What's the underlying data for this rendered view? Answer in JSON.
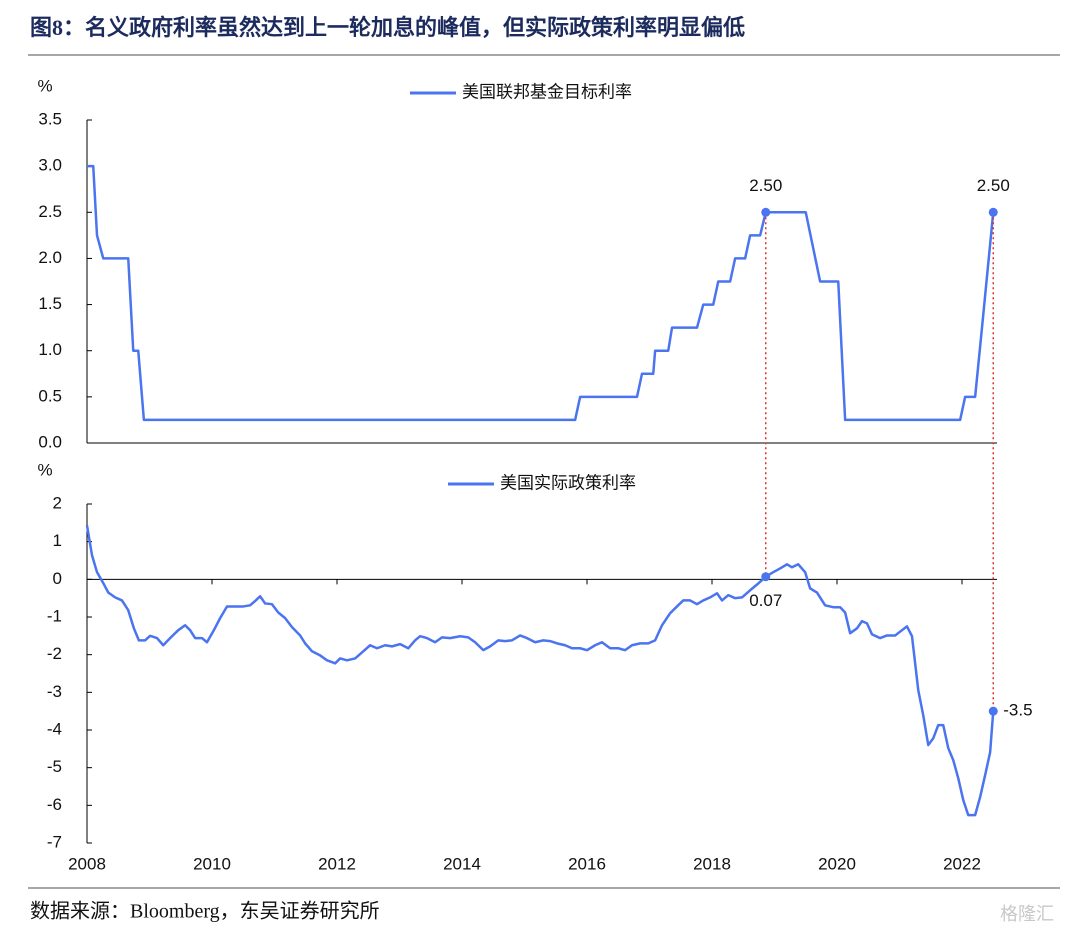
{
  "title": "图8：名义政府利率虽然达到上一轮加息的峰值，但实际政策利率明显偏低",
  "source": "数据来源：Bloomberg，东吴证券研究所",
  "watermark": "格隆汇",
  "chart_data": [
    {
      "type": "line",
      "ylabel": "%",
      "xlim": [
        2008,
        2022.56
      ],
      "ylim": [
        0,
        3.5
      ],
      "yticks": [
        {
          "value": 0,
          "label": "0.0"
        },
        0.5,
        {
          "value": 1,
          "label": "1.0"
        },
        1.5,
        {
          "value": 2,
          "label": "2.0"
        },
        2.5,
        {
          "value": 3,
          "label": "3.0"
        },
        3.5
      ],
      "series": [
        {
          "name": "美国联邦基金目标利率",
          "color": "#4a74f0",
          "x": [
            2008.0,
            2008.1,
            2008.16,
            2008.26,
            2008.66,
            2008.74,
            2008.82,
            2008.91,
            2015.81,
            2015.89,
            2016.8,
            2016.88,
            2017.06,
            2017.09,
            2017.3,
            2017.36,
            2017.76,
            2017.86,
            2018.02,
            2018.1,
            2018.29,
            2018.37,
            2018.53,
            2018.61,
            2018.77,
            2018.86,
            2019.5,
            2019.73,
            2020.02,
            2020.13,
            2021.97,
            2022.05,
            2022.21,
            2022.32,
            2022.5
          ],
          "values": [
            3.0,
            3.0,
            2.25,
            2.0,
            2.0,
            1.0,
            1.0,
            0.25,
            0.25,
            0.5,
            0.5,
            0.75,
            0.75,
            1.0,
            1.0,
            1.25,
            1.25,
            1.5,
            1.5,
            1.75,
            1.75,
            2.0,
            2.0,
            2.25,
            2.25,
            2.5,
            2.5,
            1.75,
            1.75,
            0.25,
            0.25,
            0.5,
            0.5,
            1.25,
            2.5
          ]
        }
      ],
      "annotations": [
        {
          "x": 2018.86,
          "y": 2.5,
          "label": "2.50",
          "position": "above"
        },
        {
          "x": 2022.5,
          "y": 2.5,
          "label": "2.50",
          "position": "above"
        }
      ]
    },
    {
      "type": "line",
      "ylabel": "%",
      "xlim": [
        2008,
        2022.56
      ],
      "ylim": [
        -7,
        2
      ],
      "yticks": [
        -7,
        -6,
        -5,
        -4,
        -3,
        -2,
        -1,
        0,
        1,
        2
      ],
      "xticks": [
        2008,
        2010,
        2012,
        2014,
        2016,
        2018,
        2020,
        2022
      ],
      "series": [
        {
          "name": "美国实际政策利率",
          "color": "#4a74f0",
          "x": [
            2008.0,
            2008.08,
            2008.16,
            2008.26,
            2008.34,
            2008.45,
            2008.56,
            2008.66,
            2008.75,
            2008.83,
            2008.93,
            2009.01,
            2009.12,
            2009.22,
            2009.33,
            2009.46,
            2009.57,
            2009.65,
            2009.73,
            2009.84,
            2009.92,
            2010.03,
            2010.13,
            2010.24,
            2010.37,
            2010.5,
            2010.61,
            2010.7,
            2010.77,
            2010.85,
            2010.96,
            2011.06,
            2011.17,
            2011.28,
            2011.41,
            2011.49,
            2011.6,
            2011.73,
            2011.84,
            2011.97,
            2012.05,
            2012.16,
            2012.29,
            2012.4,
            2012.53,
            2012.64,
            2012.77,
            2012.88,
            2013.01,
            2013.14,
            2013.25,
            2013.33,
            2013.44,
            2013.57,
            2013.68,
            2013.81,
            2013.97,
            2014.1,
            2014.21,
            2014.34,
            2014.45,
            2014.58,
            2014.69,
            2014.8,
            2014.93,
            2015.04,
            2015.17,
            2015.3,
            2015.41,
            2015.52,
            2015.65,
            2015.76,
            2015.89,
            2016.0,
            2016.13,
            2016.24,
            2016.37,
            2016.5,
            2016.61,
            2016.72,
            2016.85,
            2016.98,
            2017.09,
            2017.2,
            2017.33,
            2017.44,
            2017.54,
            2017.65,
            2017.76,
            2017.86,
            2017.97,
            2018.08,
            2018.16,
            2018.26,
            2018.37,
            2018.48,
            2018.61,
            2018.74,
            2018.86,
            2018.98,
            2019.09,
            2019.2,
            2019.28,
            2019.38,
            2019.49,
            2019.57,
            2019.68,
            2019.81,
            2019.94,
            2020.05,
            2020.13,
            2020.21,
            2020.32,
            2020.4,
            2020.48,
            2020.56,
            2020.69,
            2020.8,
            2020.93,
            2021.04,
            2021.12,
            2021.2,
            2021.3,
            2021.38,
            2021.46,
            2021.54,
            2021.62,
            2021.7,
            2021.78,
            2021.86,
            2021.94,
            2022.02,
            2022.1,
            2022.21,
            2022.29,
            2022.37,
            2022.45,
            2022.5
          ],
          "values": [
            1.43,
            0.64,
            0.19,
            -0.1,
            -0.35,
            -0.48,
            -0.56,
            -0.82,
            -1.3,
            -1.62,
            -1.62,
            -1.5,
            -1.56,
            -1.75,
            -1.56,
            -1.35,
            -1.22,
            -1.35,
            -1.56,
            -1.56,
            -1.67,
            -1.35,
            -1.03,
            -0.72,
            -0.72,
            -0.72,
            -0.69,
            -0.56,
            -0.45,
            -0.64,
            -0.66,
            -0.88,
            -1.03,
            -1.27,
            -1.49,
            -1.7,
            -1.91,
            -2.02,
            -2.15,
            -2.23,
            -2.1,
            -2.15,
            -2.1,
            -1.94,
            -1.75,
            -1.83,
            -1.75,
            -1.78,
            -1.72,
            -1.83,
            -1.62,
            -1.51,
            -1.56,
            -1.67,
            -1.54,
            -1.56,
            -1.51,
            -1.54,
            -1.67,
            -1.88,
            -1.78,
            -1.62,
            -1.64,
            -1.62,
            -1.49,
            -1.56,
            -1.67,
            -1.62,
            -1.64,
            -1.7,
            -1.75,
            -1.83,
            -1.83,
            -1.88,
            -1.75,
            -1.67,
            -1.83,
            -1.83,
            -1.88,
            -1.75,
            -1.7,
            -1.7,
            -1.62,
            -1.22,
            -0.9,
            -0.72,
            -0.56,
            -0.56,
            -0.66,
            -0.56,
            -0.48,
            -0.37,
            -0.56,
            -0.42,
            -0.5,
            -0.48,
            -0.29,
            -0.11,
            0.07,
            0.19,
            0.29,
            0.4,
            0.32,
            0.4,
            0.19,
            -0.24,
            -0.35,
            -0.69,
            -0.74,
            -0.74,
            -0.88,
            -1.43,
            -1.3,
            -1.11,
            -1.17,
            -1.46,
            -1.56,
            -1.49,
            -1.49,
            -1.35,
            -1.25,
            -1.51,
            -2.94,
            -3.61,
            -4.4,
            -4.22,
            -3.87,
            -3.87,
            -4.48,
            -4.8,
            -5.28,
            -5.86,
            -6.26,
            -6.26,
            -5.78,
            -5.2,
            -4.59,
            -3.5
          ]
        }
      ],
      "annotations": [
        {
          "x": 2018.86,
          "y": 0.07,
          "label": "0.07",
          "position": "below"
        },
        {
          "x": 2022.5,
          "y": -3.5,
          "label": "-3.5",
          "position": "right"
        }
      ]
    }
  ]
}
